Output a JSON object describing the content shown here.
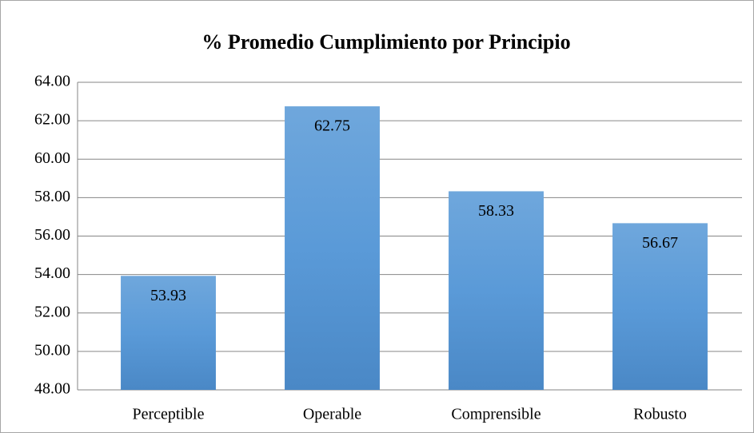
{
  "chart_data": {
    "type": "bar",
    "title": "% Promedio Cumplimiento por Principio",
    "categories": [
      "Perceptible",
      "Operable",
      "Comprensible",
      "Robusto"
    ],
    "values": [
      53.93,
      62.75,
      58.33,
      56.67
    ],
    "color": "#5b9bd5",
    "ylim": [
      48,
      64
    ],
    "yticks": [
      {
        "value": 48,
        "label": "48.00"
      },
      {
        "value": 50,
        "label": "50.00"
      },
      {
        "value": 52,
        "label": "52.00"
      },
      {
        "value": 54,
        "label": "54.00"
      },
      {
        "value": 56,
        "label": "56.00"
      },
      {
        "value": 58,
        "label": "58.00"
      },
      {
        "value": 60,
        "label": "60.00"
      },
      {
        "value": 62,
        "label": "62.00"
      },
      {
        "value": 64,
        "label": "64.00"
      }
    ],
    "grid": true
  }
}
